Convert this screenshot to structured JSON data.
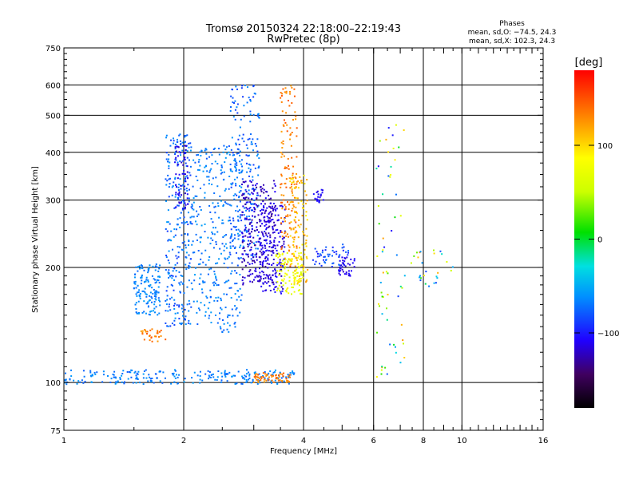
{
  "header": {
    "title_line1": "Tromsø 20150324 22:18:00–22:19:43",
    "title_line2": "RwPretec (8p)"
  },
  "stats": {
    "label": "Phases",
    "line_o": "mean, sd,O: −74.5, 24.3",
    "line_x": "mean, sd,X: 102.3, 24.3"
  },
  "chart_data": {
    "type": "scatter",
    "xlabel": "Frequency [MHz]",
    "ylabel": "Stationary phase Virtual Height [km]",
    "xscale": "log",
    "yscale": "log",
    "xlim": [
      1,
      16
    ],
    "ylim": [
      75,
      750
    ],
    "xticks": [
      1,
      2,
      4,
      6,
      8,
      10,
      16
    ],
    "xtick_labels": [
      "1",
      "2",
      "4",
      "6",
      "8",
      "10",
      "16"
    ],
    "xgrid": [
      2,
      4,
      6,
      8,
      10
    ],
    "yticks": [
      75,
      100,
      200,
      300,
      400,
      500,
      600,
      750
    ],
    "ytick_labels": [
      "75",
      "100",
      "200",
      "300",
      "400",
      "500",
      "600",
      "750"
    ],
    "ygrid": [
      100,
      200,
      300,
      400,
      500,
      600
    ],
    "grid": true,
    "colorbar": {
      "label": "[deg]",
      "min": -180,
      "max": 180,
      "ticks": [
        100,
        0,
        -100
      ],
      "tick_labels": [
        "100",
        "0",
        "−100"
      ]
    },
    "clusters": [
      {
        "f": [
          1.0,
          3.8
        ],
        "h": [
          99,
          108
        ],
        "phase": [
          -80,
          -55
        ],
        "count": 240
      },
      {
        "f": [
          3.0,
          3.75
        ],
        "h": [
          100,
          106
        ],
        "phase": [
          120,
          150
        ],
        "count": 60
      },
      {
        "f": [
          1.5,
          1.75
        ],
        "h": [
          150,
          205
        ],
        "phase": [
          -75,
          -55
        ],
        "count": 140
      },
      {
        "f": [
          1.55,
          1.8
        ],
        "h": [
          128,
          138
        ],
        "phase": [
          120,
          150
        ],
        "count": 30
      },
      {
        "f": [
          1.8,
          2.1
        ],
        "h": [
          140,
          450
        ],
        "phase": [
          -90,
          -55
        ],
        "count": 280
      },
      {
        "f": [
          1.9,
          2.05
        ],
        "h": [
          280,
          420
        ],
        "phase": [
          -125,
          -100
        ],
        "count": 60
      },
      {
        "f": [
          2.1,
          2.8
        ],
        "h": [
          135,
          420
        ],
        "phase": [
          -80,
          -55
        ],
        "count": 320
      },
      {
        "f": [
          2.6,
          3.1
        ],
        "h": [
          210,
          600
        ],
        "phase": [
          -90,
          -60
        ],
        "count": 220
      },
      {
        "f": [
          2.8,
          3.4
        ],
        "h": [
          180,
          340
        ],
        "phase": [
          -135,
          -105
        ],
        "count": 260
      },
      {
        "f": [
          3.1,
          3.6
        ],
        "h": [
          170,
          300
        ],
        "phase": [
          -125,
          -100
        ],
        "count": 160
      },
      {
        "f": [
          3.5,
          3.85
        ],
        "h": [
          200,
          600
        ],
        "phase": [
          120,
          150
        ],
        "count": 140
      },
      {
        "f": [
          3.7,
          4.1
        ],
        "h": [
          180,
          350
        ],
        "phase": [
          90,
          125
        ],
        "count": 120
      },
      {
        "f": [
          3.4,
          4.0
        ],
        "h": [
          170,
          220
        ],
        "phase": [
          60,
          90
        ],
        "count": 100
      },
      {
        "f": [
          4.2,
          5.2
        ],
        "h": [
          200,
          230
        ],
        "phase": [
          -100,
          -70
        ],
        "count": 50
      },
      {
        "f": [
          4.9,
          5.4
        ],
        "h": [
          190,
          215
        ],
        "phase": [
          -120,
          -100
        ],
        "count": 40
      },
      {
        "f": [
          6.1,
          7.2
        ],
        "h": [
          100,
          480
        ],
        "phase": [
          -110,
          140
        ],
        "count": 60
      },
      {
        "f": [
          7.0,
          9.5
        ],
        "h": [
          175,
          230
        ],
        "phase": [
          -120,
          140
        ],
        "count": 30
      },
      {
        "f": [
          4.2,
          4.5
        ],
        "h": [
          295,
          320
        ],
        "phase": [
          -115,
          -100
        ],
        "count": 20
      }
    ]
  }
}
